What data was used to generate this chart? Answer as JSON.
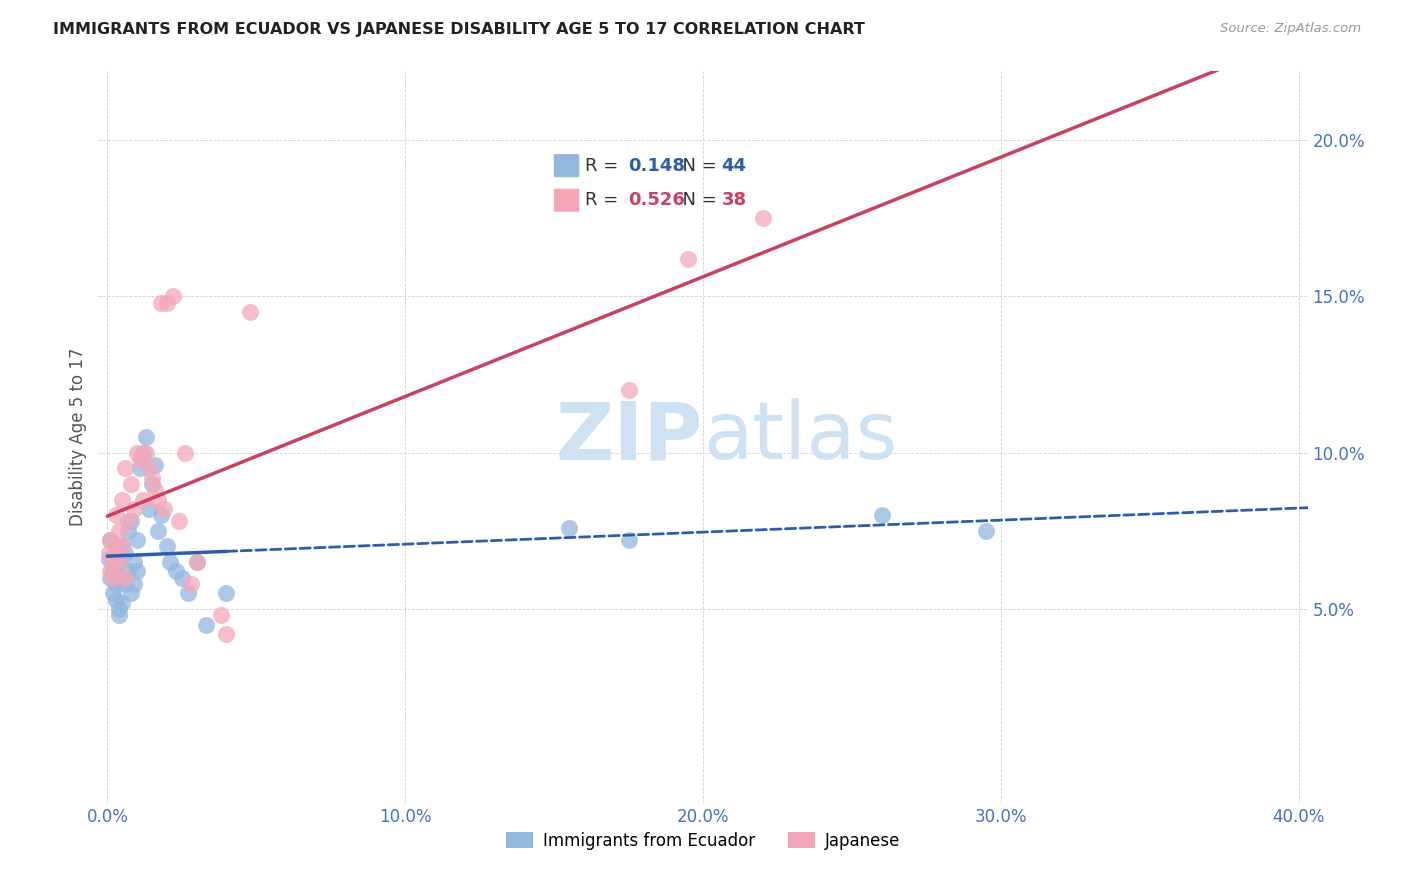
{
  "title": "IMMIGRANTS FROM ECUADOR VS JAPANESE DISABILITY AGE 5 TO 17 CORRELATION CHART",
  "source": "Source: ZipAtlas.com",
  "ylabel_label": "Disability Age 5 to 17",
  "legend_label1": "Immigrants from Ecuador",
  "legend_label2": "Japanese",
  "R1": 0.148,
  "N1": 44,
  "R2": 0.526,
  "N2": 38,
  "xlim": [
    -0.003,
    0.403
  ],
  "ylim": [
    -0.012,
    0.222
  ],
  "xticks": [
    0.0,
    0.1,
    0.2,
    0.3,
    0.4
  ],
  "yticks": [
    0.05,
    0.1,
    0.15,
    0.2
  ],
  "color_blue": "#92b8e0",
  "color_pink": "#f4a7b9",
  "color_line_blue": "#2f5ea8",
  "color_line_pink": "#c94060",
  "color_axis_labels": "#4472c4",
  "background_color": "#ffffff",
  "watermark_color": "#cfe2f3",
  "scatter_blue_x": [
    0.0005,
    0.001,
    0.001,
    0.002,
    0.002,
    0.003,
    0.003,
    0.003,
    0.004,
    0.004,
    0.004,
    0.005,
    0.005,
    0.005,
    0.006,
    0.006,
    0.007,
    0.007,
    0.008,
    0.008,
    0.009,
    0.009,
    0.01,
    0.01,
    0.011,
    0.012,
    0.013,
    0.014,
    0.015,
    0.016,
    0.017,
    0.018,
    0.02,
    0.021,
    0.023,
    0.025,
    0.027,
    0.03,
    0.033,
    0.04,
    0.155,
    0.175,
    0.26,
    0.295
  ],
  "scatter_blue_y": [
    0.066,
    0.072,
    0.06,
    0.055,
    0.062,
    0.068,
    0.058,
    0.053,
    0.048,
    0.05,
    0.065,
    0.052,
    0.06,
    0.07,
    0.058,
    0.068,
    0.062,
    0.075,
    0.055,
    0.078,
    0.065,
    0.058,
    0.072,
    0.062,
    0.095,
    0.1,
    0.105,
    0.082,
    0.09,
    0.096,
    0.075,
    0.08,
    0.07,
    0.065,
    0.062,
    0.06,
    0.055,
    0.065,
    0.045,
    0.055,
    0.076,
    0.072,
    0.08,
    0.075
  ],
  "scatter_pink_x": [
    0.0005,
    0.001,
    0.001,
    0.002,
    0.002,
    0.003,
    0.003,
    0.004,
    0.004,
    0.005,
    0.005,
    0.006,
    0.006,
    0.007,
    0.008,
    0.009,
    0.01,
    0.011,
    0.012,
    0.013,
    0.014,
    0.015,
    0.016,
    0.017,
    0.018,
    0.019,
    0.02,
    0.022,
    0.024,
    0.026,
    0.028,
    0.03,
    0.038,
    0.04,
    0.048,
    0.175,
    0.195,
    0.22
  ],
  "scatter_pink_y": [
    0.068,
    0.072,
    0.062,
    0.065,
    0.06,
    0.07,
    0.08,
    0.075,
    0.065,
    0.07,
    0.085,
    0.06,
    0.095,
    0.078,
    0.09,
    0.082,
    0.1,
    0.098,
    0.085,
    0.1,
    0.095,
    0.092,
    0.088,
    0.085,
    0.148,
    0.082,
    0.148,
    0.15,
    0.078,
    0.1,
    0.058,
    0.065,
    0.048,
    0.042,
    0.145,
    0.12,
    0.162,
    0.175
  ],
  "blue_line_solid_end": 0.04,
  "blue_line_x0": 0.0,
  "blue_line_x1": 0.403,
  "pink_line_x0": 0.0,
  "pink_line_x1": 0.403
}
